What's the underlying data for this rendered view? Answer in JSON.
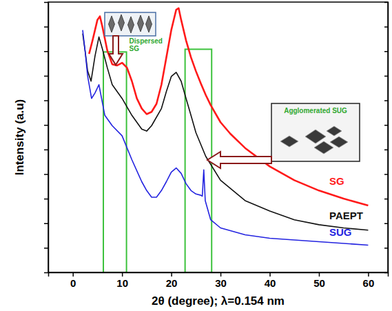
{
  "chart_data": {
    "type": "line",
    "x_label": "2θ (degree); λ=0.154 nm",
    "y_label": "Intensity (a.u)",
    "xlim": [
      -5,
      64
    ],
    "xticks": [
      0,
      10,
      20,
      30,
      40,
      50,
      60
    ],
    "ylim": [
      0,
      11
    ],
    "yticks": [
      1,
      2,
      3,
      4,
      5,
      6,
      7,
      8,
      9,
      10
    ],
    "tick_labels": "x",
    "series": [
      {
        "name": "SG",
        "color": "#ff1a1a",
        "x": [
          3.3,
          4,
          5,
          5.5,
          6,
          7,
          8,
          9,
          10,
          11,
          12,
          13,
          14,
          15,
          16,
          17,
          18,
          19,
          20,
          21,
          21.5,
          22,
          23,
          24,
          25,
          26,
          27,
          28,
          30,
          32,
          35,
          40,
          45,
          50,
          55,
          60
        ],
        "values": [
          8.89,
          9.44,
          10.28,
          10.42,
          10.0,
          9.03,
          8.47,
          8.42,
          8.53,
          8.33,
          7.78,
          7.08,
          6.67,
          6.44,
          6.53,
          6.86,
          7.64,
          8.75,
          9.86,
          10.69,
          10.75,
          10.28,
          9.44,
          8.75,
          8.19,
          7.69,
          7.22,
          6.81,
          6.11,
          5.64,
          5.06,
          4.31,
          3.75,
          3.33,
          3.0,
          2.72
        ]
      },
      {
        "name": "PAEPT",
        "color": "#111111",
        "x": [
          2,
          2.5,
          3,
          3.7,
          4.5,
          5.3,
          6,
          7,
          8,
          10,
          12,
          14,
          15,
          16,
          18,
          19,
          20,
          21,
          22,
          23,
          24,
          25,
          27,
          30,
          35,
          40,
          45,
          50,
          55,
          60
        ],
        "values": [
          9.72,
          9.0,
          8.2,
          7.78,
          8.8,
          9.58,
          9.1,
          8.33,
          7.64,
          7.08,
          6.39,
          5.83,
          5.75,
          5.97,
          6.67,
          7.36,
          7.97,
          8.14,
          7.78,
          7.08,
          6.39,
          5.69,
          4.72,
          3.75,
          2.92,
          2.5,
          2.14,
          1.94,
          1.81,
          1.72
        ]
      },
      {
        "name": "SUG",
        "color": "#2323e0",
        "x": [
          2,
          2.5,
          3,
          3.8,
          4.5,
          5.3,
          6.5,
          8,
          10,
          12,
          14,
          15,
          16,
          17,
          18,
          19,
          20,
          21,
          22,
          23,
          24,
          25,
          26,
          26.3,
          26.6,
          26.9,
          28,
          30,
          35,
          40,
          50,
          60
        ],
        "values": [
          9.86,
          9.0,
          8.0,
          7.08,
          7.3,
          7.64,
          6.39,
          5.97,
          5.56,
          4.58,
          3.69,
          3.33,
          3.06,
          3.06,
          3.33,
          3.69,
          4.08,
          4.25,
          4.03,
          3.61,
          3.33,
          3.19,
          3.14,
          3.1,
          4.17,
          2.92,
          2.14,
          1.81,
          1.53,
          1.39,
          1.25,
          1.11
        ]
      }
    ],
    "annotations": [
      {
        "text": "Dispersed SG",
        "x": [
          6.2,
          10.9
        ],
        "y": [
          0,
          8.97
        ]
      },
      {
        "text": "Agglomerated SUG",
        "x": [
          22.8,
          28.2
        ],
        "y": [
          0,
          9.08
        ]
      }
    ]
  }
}
